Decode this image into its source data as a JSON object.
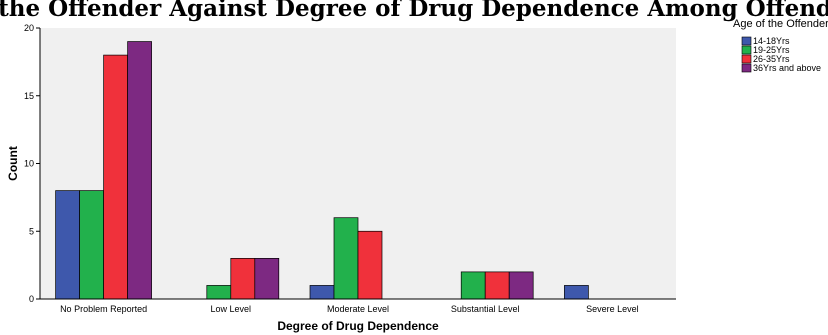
{
  "chart_data": {
    "type": "bar",
    "title": "Age of the Offender Against Degree of Drug Dependence Among Offenders",
    "xlabel": "Degree of Drug Dependence",
    "ylabel": "Count",
    "ylim": [
      0,
      20
    ],
    "yticks": [
      0,
      5,
      10,
      15,
      20
    ],
    "grid": false,
    "legend_title": "Age of the Offender",
    "legend_position": "right",
    "categories": [
      "No Problem Reported",
      "Low  Level",
      "Moderate Level",
      "Substantial Level",
      "Severe Level"
    ],
    "series": [
      {
        "name": "14-18Yrs",
        "color": "#3e58ac",
        "values": [
          8,
          0,
          1,
          0,
          1
        ]
      },
      {
        "name": "19-25Yrs",
        "color": "#22b14c",
        "values": [
          8,
          1,
          6,
          2,
          0
        ]
      },
      {
        "name": "26-35Yrs",
        "color": "#f0313b",
        "values": [
          18,
          3,
          5,
          2,
          0
        ]
      },
      {
        "name": "36Yrs and above",
        "color": "#7d2982",
        "values": [
          19,
          3,
          0,
          2,
          0
        ]
      }
    ]
  }
}
